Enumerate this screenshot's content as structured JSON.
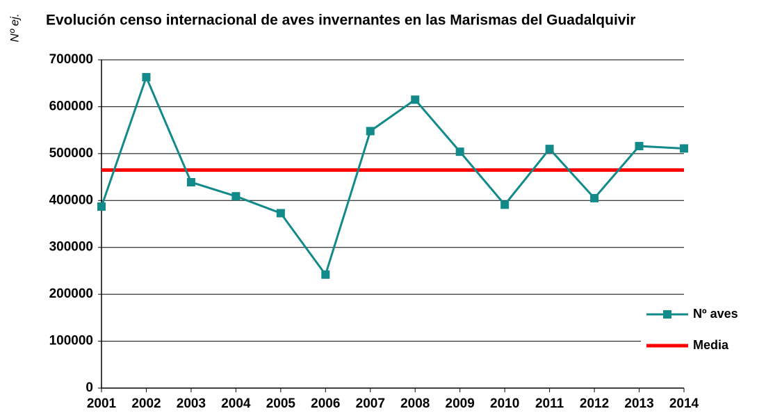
{
  "chart_data": {
    "type": "line",
    "title": "Evolución censo internacional de aves invernantes en las Marismas del Guadalquivir",
    "y_label": "Nº ej.",
    "categories": [
      "2001",
      "2002",
      "2003",
      "2004",
      "2005",
      "2006",
      "2007",
      "2008",
      "2009",
      "2010",
      "2011",
      "2012",
      "2013",
      "2014"
    ],
    "series": [
      {
        "name": "Nº aves",
        "color": "#138a8a",
        "marker": "square",
        "values": [
          387000,
          663000,
          439000,
          409000,
          373000,
          242000,
          548000,
          615000,
          504000,
          391000,
          510000,
          405000,
          516000,
          511000
        ]
      },
      {
        "name": "Media",
        "color": "#ff0000",
        "marker": "none",
        "values": [
          465000,
          465000,
          465000,
          465000,
          465000,
          465000,
          465000,
          465000,
          465000,
          465000,
          465000,
          465000,
          465000,
          465000
        ]
      }
    ],
    "ylim": [
      0,
      700000
    ],
    "yticks": [
      0,
      100000,
      200000,
      300000,
      400000,
      500000,
      600000,
      700000
    ],
    "grid": true,
    "legend": "right"
  }
}
